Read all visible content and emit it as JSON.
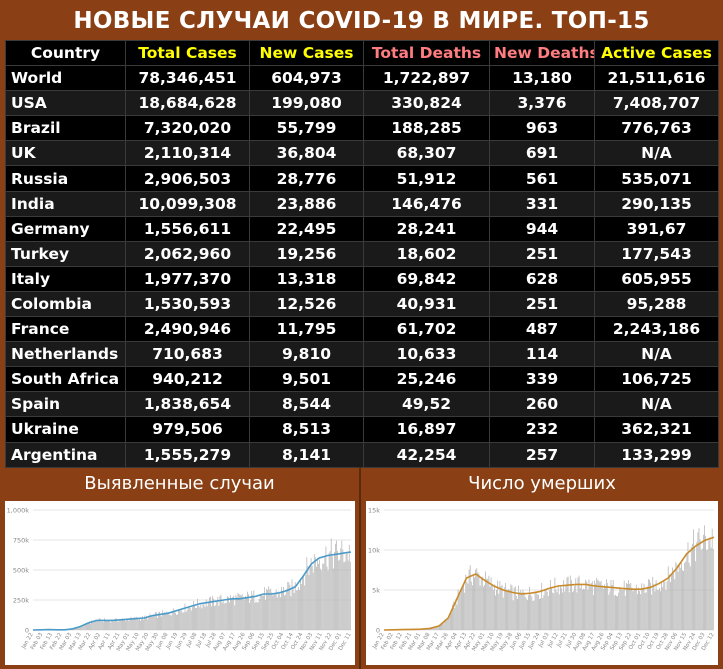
{
  "title": "НОВЫЕ СЛУЧАИ COVID-19 В МИРЕ. ТОП-15",
  "colors": {
    "total_cases": "#ffff00",
    "new_cases": "#ffff00",
    "total_deaths": "#ff7c80",
    "new_deaths": "#ff7c80",
    "active_cases": "#ffff00",
    "country": "#ffffff",
    "cases_line": "#4a9bc9",
    "deaths_line": "#c98a2a",
    "bars": "#b5b5b5"
  },
  "table": {
    "headers": [
      "Country",
      "Total Cases",
      "New Cases",
      "Total Deaths",
      "New Deaths",
      "Active Cases"
    ],
    "rows": [
      [
        "World",
        "78,346,451",
        "604,973",
        "1,722,897",
        "13,180",
        "21,511,616"
      ],
      [
        "USA",
        "18,684,628",
        "199,080",
        "330,824",
        "3,376",
        "7,408,707"
      ],
      [
        "Brazil",
        "7,320,020",
        "55,799",
        "188,285",
        "963",
        "776,763"
      ],
      [
        "UK",
        "2,110,314",
        "36,804",
        "68,307",
        "691",
        "N/A"
      ],
      [
        "Russia",
        "2,906,503",
        "28,776",
        "51,912",
        "561",
        "535,071"
      ],
      [
        "India",
        "10,099,308",
        "23,886",
        "146,476",
        "331",
        "290,135"
      ],
      [
        "Germany",
        "1,556,611",
        "22,495",
        "28,241",
        "944",
        "391,67"
      ],
      [
        "Turkey",
        "2,062,960",
        "19,256",
        "18,602",
        "251",
        "177,543"
      ],
      [
        "Italy",
        "1,977,370",
        "13,318",
        "69,842",
        "628",
        "605,955"
      ],
      [
        "Colombia",
        "1,530,593",
        "12,526",
        "40,931",
        "251",
        "95,288"
      ],
      [
        "France",
        "2,490,946",
        "11,795",
        "61,702",
        "487",
        "2,243,186"
      ],
      [
        "Netherlands",
        "710,683",
        "9,810",
        "10,633",
        "114",
        "N/A"
      ],
      [
        "South Africa",
        "940,212",
        "9,501",
        "25,246",
        "339",
        "106,725"
      ],
      [
        "Spain",
        "1,838,654",
        "8,544",
        "49,52",
        "260",
        "N/A"
      ],
      [
        "Ukraine",
        "979,506",
        "8,513",
        "16,897",
        "232",
        "362,321"
      ],
      [
        "Argentina",
        "1,555,279",
        "8,141",
        "42,254",
        "257",
        "133,299"
      ]
    ]
  },
  "panels": {
    "cases_title": "Выявленные случаи",
    "deaths_title": "Число умерших"
  },
  "chart_data": [
    {
      "type": "bar",
      "overlay": "line",
      "title": "Выявленные случаи",
      "ylim": [
        0,
        1000000
      ],
      "y_ticks": [
        "0",
        "250k",
        "500k",
        "750k",
        "1,000k"
      ],
      "x_ticks": [
        "Jan 22",
        "Feb 03",
        "Feb 13",
        "Feb 22",
        "Mar 03",
        "Mar 13",
        "Mar 22",
        "Apr 02",
        "Apr 11",
        "Apr 21",
        "May 01",
        "May 10",
        "May 20",
        "May 30",
        "Jun 08",
        "Jun 19",
        "Jun 29",
        "Jul 08",
        "Jul 18",
        "Jul 28",
        "Aug 07",
        "Aug 17",
        "Aug 26",
        "Sep 06",
        "Sep 15",
        "Sep 25",
        "Oct 04",
        "Oct 14",
        "Oct 24",
        "Nov 03",
        "Nov 11",
        "Nov 22",
        "Dec 01",
        "Dec 11"
      ],
      "series": [
        {
          "values": [
            0,
            2000,
            3000,
            2000,
            2000,
            10000,
            30000,
            60000,
            80000,
            80000,
            80000,
            85000,
            90000,
            95000,
            100000,
            120000,
            130000,
            140000,
            160000,
            180000,
            200000,
            220000,
            230000,
            240000,
            250000,
            260000,
            260000,
            270000,
            280000,
            300000,
            300000,
            310000,
            330000,
            360000,
            450000,
            550000,
            600000,
            620000,
            630000,
            640000,
            650000
          ]
        }
      ]
    },
    {
      "type": "bar",
      "overlay": "line",
      "title": "Число умерших",
      "ylim": [
        0,
        15000
      ],
      "y_ticks": [
        "0",
        "5k",
        "10k",
        "15k"
      ],
      "x_ticks": [
        "Jan 22",
        "Feb 02",
        "Feb 12",
        "Feb 21",
        "Mar 01",
        "Mar 08",
        "Mar 17",
        "Mar 26",
        "Apr 04",
        "Apr 13",
        "Apr 22",
        "May 01",
        "May 10",
        "May 19",
        "May 28",
        "Jun 06",
        "Jun 15",
        "Jun 24",
        "Jul 03",
        "Jul 12",
        "Jul 21",
        "Jul 30",
        "Aug 08",
        "Aug 17",
        "Aug 26",
        "Sep 04",
        "Sep 13",
        "Sep 22",
        "Oct 01",
        "Oct 10",
        "Oct 19",
        "Oct 28",
        "Nov 06",
        "Nov 15",
        "Nov 24",
        "Dec 03",
        "Dec 12"
      ],
      "series": [
        {
          "values": [
            0,
            20,
            50,
            80,
            100,
            200,
            500,
            1500,
            4000,
            6500,
            7000,
            6200,
            5500,
            5000,
            4700,
            4500,
            4600,
            4800,
            5200,
            5500,
            5600,
            5700,
            5700,
            5500,
            5400,
            5300,
            5200,
            5100,
            5100,
            5300,
            5800,
            6500,
            7800,
            9500,
            10500,
            11200,
            11600
          ]
        }
      ]
    }
  ]
}
